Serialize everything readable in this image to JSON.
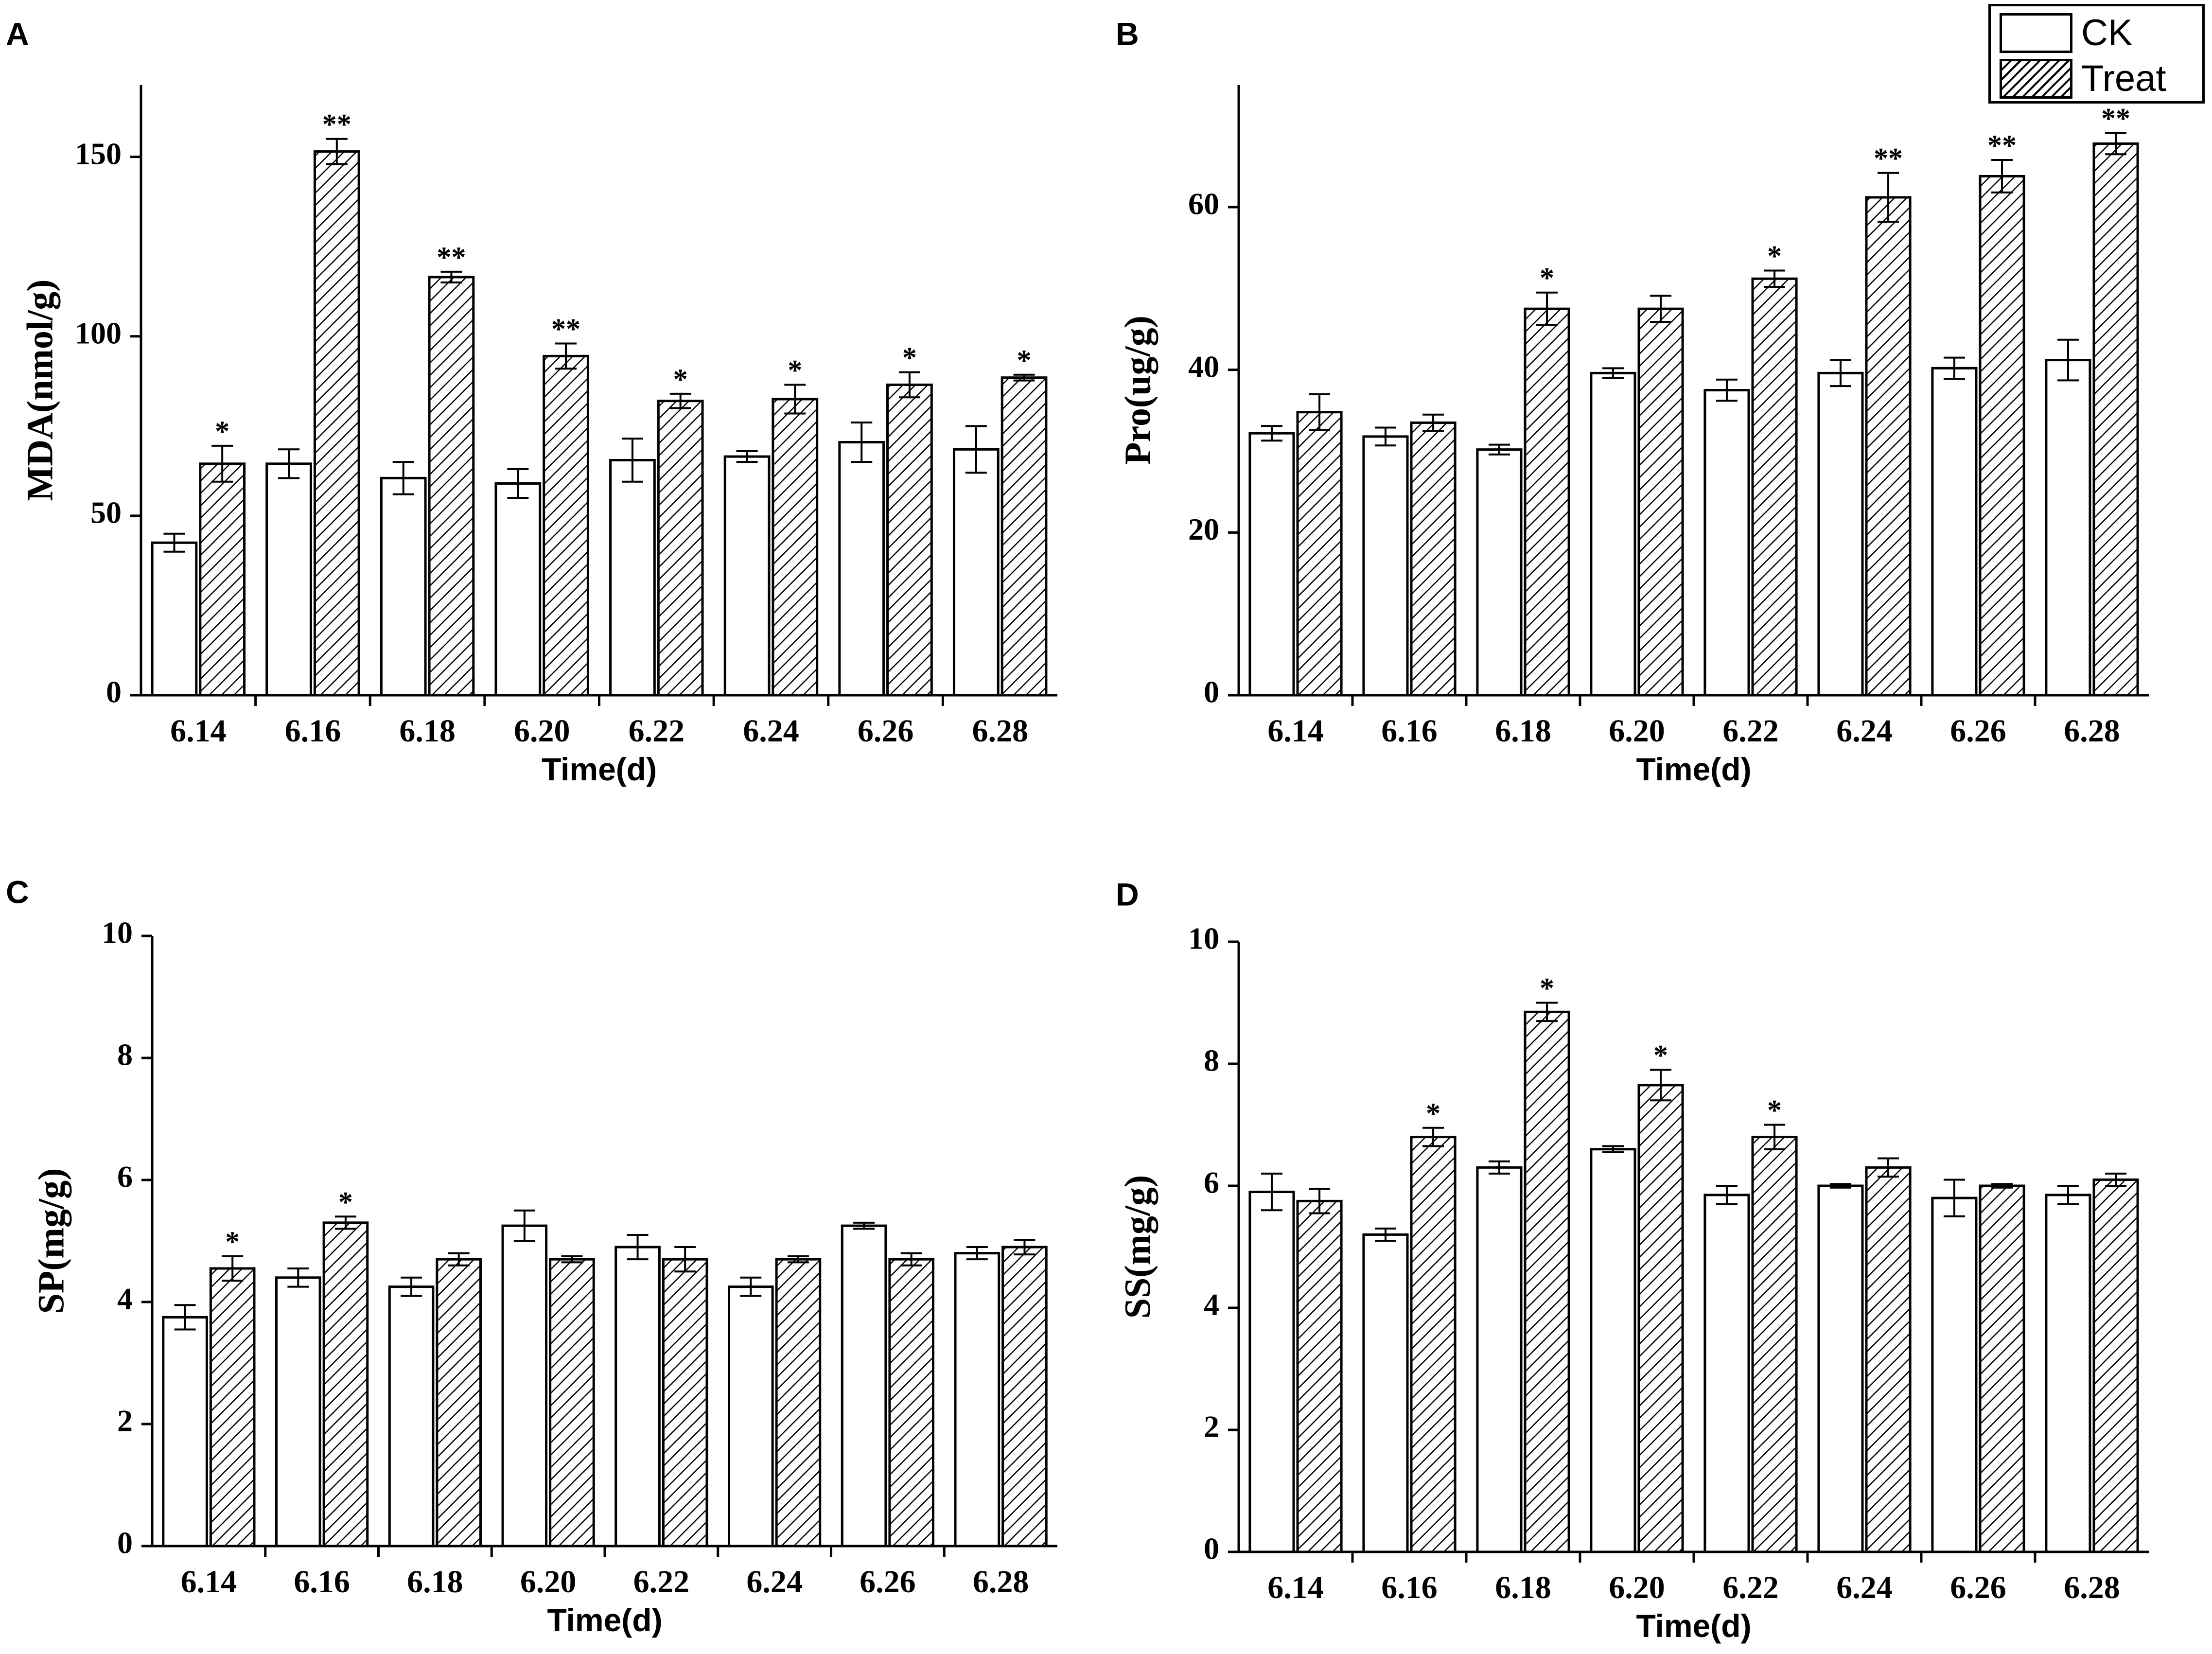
{
  "legend": {
    "ck_label": "CK",
    "treat_label": "Treat"
  },
  "colors": {
    "ck_fill": "#ffffff",
    "line": "#000000"
  },
  "chart_data": [
    {
      "panel": "A",
      "type": "bar",
      "title": "",
      "xlabel": "Time(d)",
      "ylabel": "MDA(nmol/g)",
      "ylim": [
        0,
        170
      ],
      "yticks": [
        0,
        50,
        100,
        150
      ],
      "categories": [
        "6.14",
        "6.16",
        "6.18",
        "6.20",
        "6.22",
        "6.24",
        "6.26",
        "6.28"
      ],
      "series": [
        {
          "name": "CK",
          "values": [
            42.5,
            64.5,
            60.5,
            59,
            65.5,
            66.5,
            70.5,
            68.5
          ],
          "errors": [
            2.5,
            4,
            4.5,
            4,
            6,
            1.5,
            5.5,
            6.5
          ]
        },
        {
          "name": "Treat",
          "values": [
            64.5,
            151.5,
            116.5,
            94.5,
            82,
            82.5,
            86.5,
            88.5
          ],
          "errors": [
            5,
            3.5,
            1.5,
            3.5,
            2,
            4,
            3.5,
            0.8
          ]
        }
      ],
      "significance": [
        "*",
        "**",
        "**",
        "**",
        "*",
        "*",
        "*",
        "*"
      ]
    },
    {
      "panel": "B",
      "type": "bar",
      "title": "",
      "xlabel": "Time(d)",
      "ylabel": "Pro(ug/g)",
      "ylim": [
        0,
        75
      ],
      "yticks": [
        0,
        20,
        40,
        60
      ],
      "categories": [
        "6.14",
        "6.16",
        "6.18",
        "6.20",
        "6.22",
        "6.24",
        "6.26",
        "6.28"
      ],
      "series": [
        {
          "name": "CK",
          "values": [
            32.2,
            31.8,
            30.2,
            39.6,
            37.5,
            39.6,
            40.2,
            41.2
          ],
          "errors": [
            0.9,
            1.1,
            0.6,
            0.6,
            1.3,
            1.6,
            1.3,
            2.5
          ]
        },
        {
          "name": "Treat",
          "values": [
            34.8,
            33.5,
            47.5,
            47.5,
            51.2,
            61.2,
            63.8,
            67.8
          ],
          "errors": [
            2.2,
            1.0,
            2.0,
            1.6,
            1.0,
            3.0,
            2.0,
            1.3
          ]
        }
      ],
      "significance": [
        "",
        "",
        "*",
        "",
        "*",
        "**",
        "**",
        "**"
      ]
    },
    {
      "panel": "C",
      "type": "bar",
      "title": "",
      "xlabel": "Time(d)",
      "ylabel": "SP(mg/g)",
      "ylim": [
        0,
        10
      ],
      "yticks": [
        0,
        2,
        4,
        6,
        8,
        10
      ],
      "categories": [
        "6.14",
        "6.16",
        "6.18",
        "6.20",
        "6.22",
        "6.24",
        "6.26",
        "6.28"
      ],
      "series": [
        {
          "name": "CK",
          "values": [
            3.75,
            4.4,
            4.25,
            5.25,
            4.9,
            4.25,
            5.25,
            4.8
          ],
          "errors": [
            0.2,
            0.15,
            0.15,
            0.25,
            0.2,
            0.15,
            0.05,
            0.1
          ]
        },
        {
          "name": "Treat",
          "values": [
            4.55,
            5.3,
            4.7,
            4.7,
            4.7,
            4.7,
            4.7,
            4.9
          ],
          "errors": [
            0.2,
            0.1,
            0.1,
            0.05,
            0.2,
            0.05,
            0.1,
            0.12
          ]
        }
      ],
      "significance": [
        "*",
        "*",
        "",
        "",
        "",
        "",
        "",
        ""
      ]
    },
    {
      "panel": "D",
      "type": "bar",
      "title": "",
      "xlabel": "Time(d)",
      "ylabel": "SS(mg/g)",
      "ylim": [
        0,
        10
      ],
      "yticks": [
        0,
        2,
        4,
        6,
        8,
        10
      ],
      "categories": [
        "6.14",
        "6.16",
        "6.18",
        "6.20",
        "6.22",
        "6.24",
        "6.26",
        "6.28"
      ],
      "series": [
        {
          "name": "CK",
          "values": [
            5.9,
            5.2,
            6.3,
            6.6,
            5.85,
            6.0,
            5.8,
            5.85
          ],
          "errors": [
            0.3,
            0.1,
            0.1,
            0.05,
            0.15,
            0.03,
            0.3,
            0.15
          ]
        },
        {
          "name": "Treat",
          "values": [
            5.75,
            6.8,
            8.85,
            7.65,
            6.8,
            6.3,
            6.0,
            6.1
          ],
          "errors": [
            0.2,
            0.15,
            0.15,
            0.25,
            0.2,
            0.15,
            0.03,
            0.1
          ]
        }
      ],
      "significance": [
        "",
        "*",
        "*",
        "*",
        "*",
        "",
        "",
        ""
      ]
    }
  ]
}
